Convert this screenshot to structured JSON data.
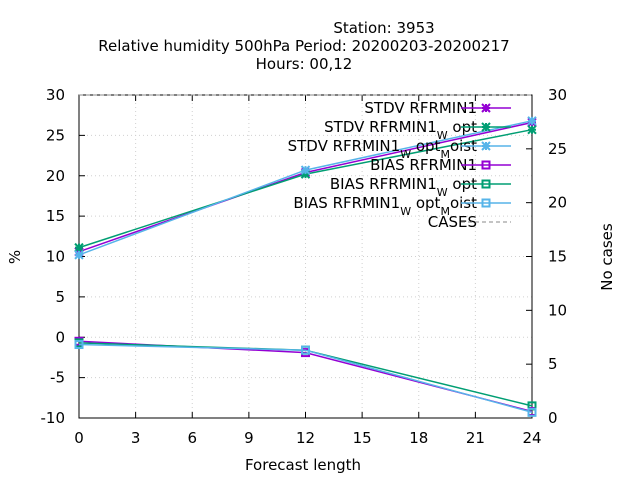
{
  "chart_data": {
    "type": "line",
    "title_lines": [
      "Station:     3953",
      "Relative humidity 500hPa   Period: 20200203-20200217",
      "Hours:  00,12"
    ],
    "xlabel": "Forecast length",
    "ylabel": "%",
    "y2label": "No cases",
    "xlim": [
      0,
      24
    ],
    "ylim": [
      -10,
      30
    ],
    "y2lim": [
      0,
      30
    ],
    "x_ticks": [
      0,
      3,
      6,
      9,
      12,
      15,
      18,
      21,
      24
    ],
    "y_ticks": [
      -10,
      -5,
      0,
      5,
      10,
      15,
      20,
      25,
      30
    ],
    "y2_ticks": [
      0,
      5,
      10,
      15,
      20,
      25,
      30
    ],
    "grid": "dotted",
    "legend_position": "top-right",
    "series": [
      {
        "name": "STDV RFRMIN1",
        "label_parts": [
          "STDV RFRMIN1"
        ],
        "color": "#9400d3",
        "marker": "x-star",
        "x": [
          0,
          12,
          24
        ],
        "y": [
          10.6,
          20.4,
          26.6
        ]
      },
      {
        "name": "STDV RFRMIN1_W opt",
        "label_parts": [
          "STDV RFRMIN1",
          "W",
          " opt"
        ],
        "color": "#009e73",
        "marker": "x-star",
        "x": [
          0,
          12,
          24
        ],
        "y": [
          11.1,
          20.2,
          25.7
        ]
      },
      {
        "name": "STDV RFRMIN1_W opt_M oist",
        "label_parts": [
          "STDV RFRMIN1",
          "W",
          " opt",
          "M",
          "oist"
        ],
        "color": "#56b4e9",
        "marker": "x-star",
        "x": [
          0,
          12,
          24
        ],
        "y": [
          10.2,
          20.7,
          26.8
        ]
      },
      {
        "name": "BIAS RFRMIN1",
        "label_parts": [
          "BIAS RFRMIN1"
        ],
        "color": "#9400d3",
        "marker": "square",
        "x": [
          0,
          12,
          24
        ],
        "y": [
          -0.5,
          -1.9,
          -9.2
        ]
      },
      {
        "name": "BIAS RFRMIN1_W opt",
        "label_parts": [
          "BIAS RFRMIN1",
          "W",
          " opt"
        ],
        "color": "#009e73",
        "marker": "square",
        "x": [
          0,
          12,
          24
        ],
        "y": [
          -0.7,
          -1.6,
          -8.5
        ]
      },
      {
        "name": "BIAS RFRMIN1_W opt_M oist",
        "label_parts": [
          "BIAS RFRMIN1",
          "W",
          " opt",
          "M",
          "oist"
        ],
        "color": "#56b4e9",
        "marker": "square",
        "x": [
          0,
          12,
          24
        ],
        "y": [
          -0.9,
          -1.6,
          -9.3
        ]
      },
      {
        "name": "CASES",
        "label_parts": [
          "CASES"
        ],
        "color": "#888888",
        "marker": "none",
        "dashed": true,
        "axis": "y2",
        "x": [
          0,
          12,
          24
        ],
        "y": [
          30,
          30,
          30
        ]
      }
    ]
  }
}
